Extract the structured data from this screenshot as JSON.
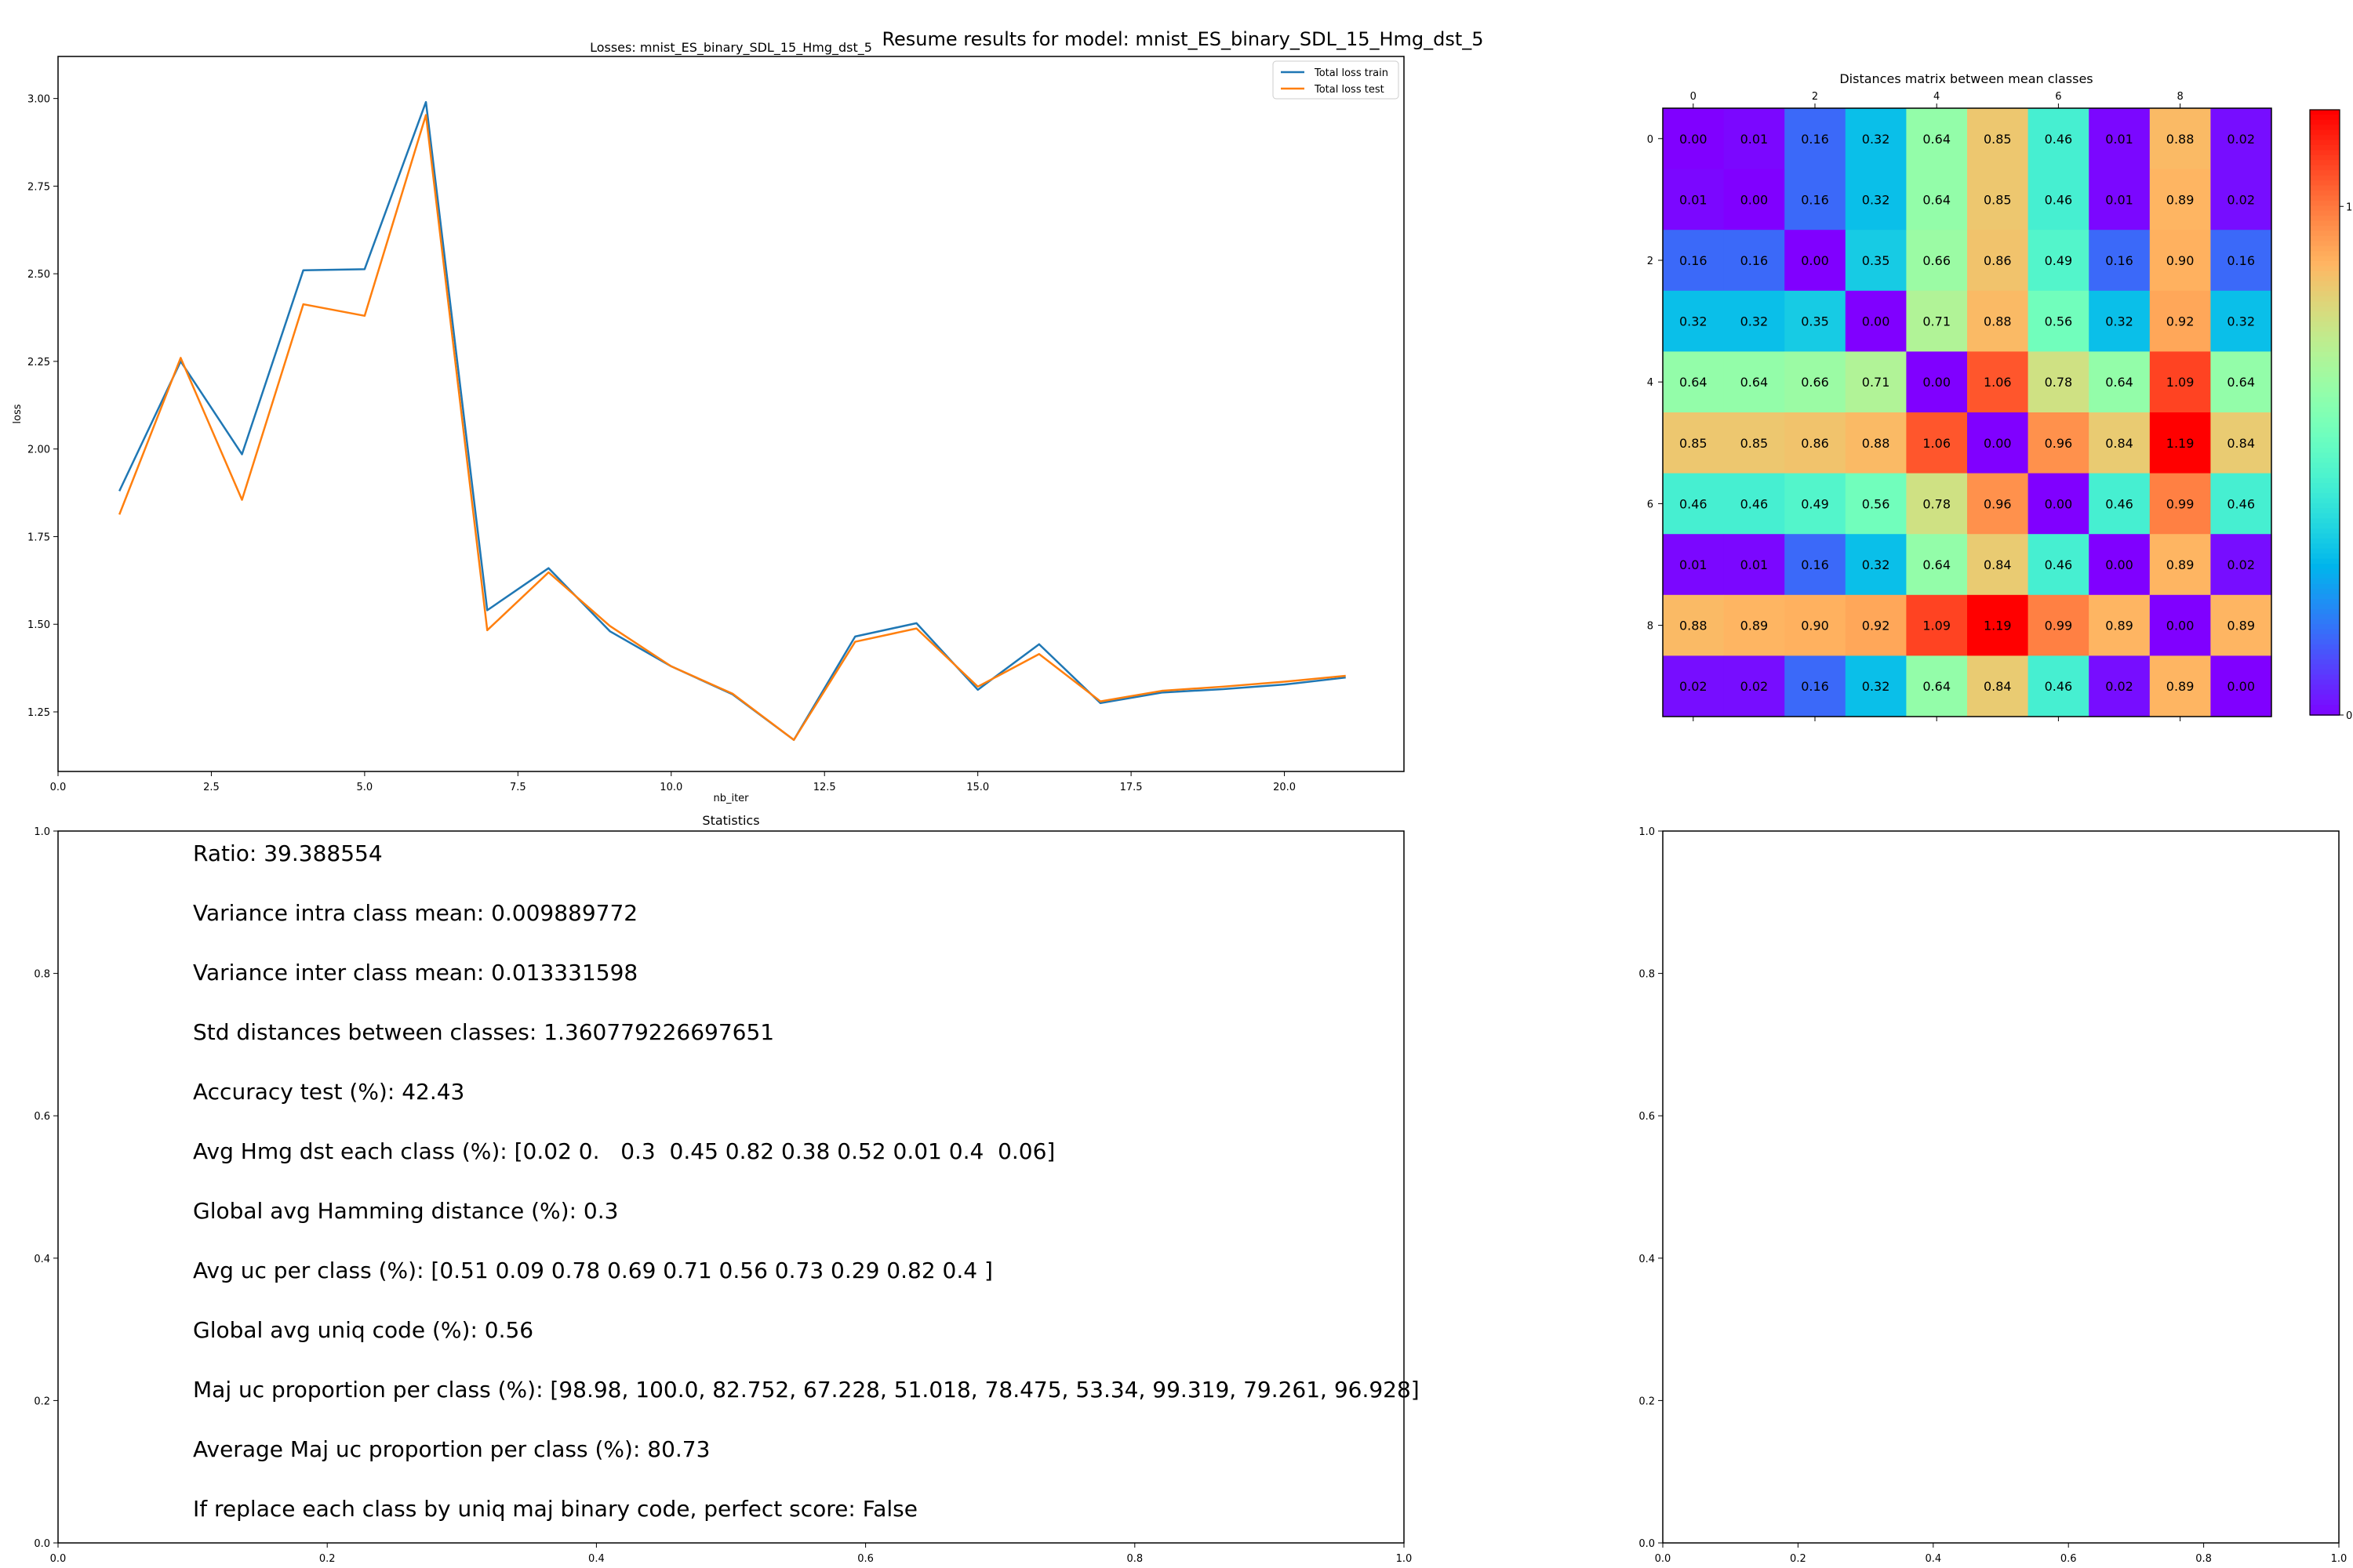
{
  "figure_title": "Resume results for model: mnist_ES_binary_SDL_15_Hmg_dst_5",
  "chart_data": [
    {
      "type": "line",
      "title": "Losses: mnist_ES_binary_SDL_15_Hmg_dst_5",
      "xlabel": "nb_iter",
      "ylabel": "loss",
      "xlim": [
        0.0,
        21.95
      ],
      "ylim": [
        1.08,
        3.12
      ],
      "x_ticks": [
        "0.0",
        "2.5",
        "5.0",
        "7.5",
        "10.0",
        "12.5",
        "15.0",
        "17.5",
        "20.0"
      ],
      "y_ticks": [
        "1.25",
        "1.50",
        "1.75",
        "2.00",
        "2.25",
        "2.50",
        "2.75",
        "3.00"
      ],
      "legend_position": "top-right",
      "x": [
        1,
        2,
        3,
        4,
        5,
        6,
        7,
        8,
        9,
        10,
        11,
        12,
        13,
        14,
        15,
        16,
        17,
        18,
        19,
        20,
        21
      ],
      "series": [
        {
          "name": "Total loss train",
          "color": "#1f77b4",
          "values": [
            1.88,
            2.25,
            1.985,
            2.51,
            2.513,
            2.99,
            1.54,
            1.66,
            1.48,
            1.38,
            1.3,
            1.17,
            1.465,
            1.503,
            1.313,
            1.443,
            1.275,
            1.305,
            1.315,
            1.328,
            1.348
          ]
        },
        {
          "name": "Total loss test",
          "color": "#ff7f0e",
          "values": [
            1.813,
            2.26,
            1.855,
            2.413,
            2.38,
            2.953,
            1.483,
            1.648,
            1.495,
            1.38,
            1.302,
            1.17,
            1.45,
            1.488,
            1.322,
            1.415,
            1.28,
            1.31,
            1.322,
            1.336,
            1.353
          ]
        }
      ]
    },
    {
      "type": "heatmap",
      "title": "Distances matrix between mean classes",
      "colormap": "rainbow",
      "vmin": 0.0,
      "vmax": 1.19,
      "row_ticks": [
        "0",
        "2",
        "4",
        "6",
        "8"
      ],
      "col_ticks": [
        "0",
        "2",
        "4",
        "6",
        "8"
      ],
      "colorbar_ticks": [
        "0",
        "1"
      ],
      "matrix": [
        [
          "0.00",
          "0.01",
          "0.16",
          "0.32",
          "0.64",
          "0.85",
          "0.46",
          "0.01",
          "0.88",
          "0.02"
        ],
        [
          "0.01",
          "0.00",
          "0.16",
          "0.32",
          "0.64",
          "0.85",
          "0.46",
          "0.01",
          "0.89",
          "0.02"
        ],
        [
          "0.16",
          "0.16",
          "0.00",
          "0.35",
          "0.66",
          "0.86",
          "0.49",
          "0.16",
          "0.90",
          "0.16"
        ],
        [
          "0.32",
          "0.32",
          "0.35",
          "0.00",
          "0.71",
          "0.88",
          "0.56",
          "0.32",
          "0.92",
          "0.32"
        ],
        [
          "0.64",
          "0.64",
          "0.66",
          "0.71",
          "0.00",
          "1.06",
          "0.78",
          "0.64",
          "1.09",
          "0.64"
        ],
        [
          "0.85",
          "0.85",
          "0.86",
          "0.88",
          "1.06",
          "0.00",
          "0.96",
          "0.84",
          "1.19",
          "0.84"
        ],
        [
          "0.46",
          "0.46",
          "0.49",
          "0.56",
          "0.78",
          "0.96",
          "0.00",
          "0.46",
          "0.99",
          "0.46"
        ],
        [
          "0.01",
          "0.01",
          "0.16",
          "0.32",
          "0.64",
          "0.84",
          "0.46",
          "0.00",
          "0.89",
          "0.02"
        ],
        [
          "0.88",
          "0.89",
          "0.90",
          "0.92",
          "1.09",
          "1.19",
          "0.99",
          "0.89",
          "0.00",
          "0.89"
        ],
        [
          "0.02",
          "0.02",
          "0.16",
          "0.32",
          "0.64",
          "0.84",
          "0.46",
          "0.02",
          "0.89",
          "0.00"
        ]
      ]
    },
    {
      "type": "text",
      "title": "Statistics",
      "xlim": [
        0,
        1
      ],
      "ylim": [
        0,
        1
      ],
      "x_ticks": [
        "0.0",
        "0.2",
        "0.4",
        "0.6",
        "0.8",
        "1.0"
      ],
      "y_ticks": [
        "0.0",
        "0.2",
        "0.4",
        "0.6",
        "0.8",
        "1.0"
      ],
      "lines": [
        "Ratio: 39.388554",
        "Variance intra class mean: 0.009889772",
        "Variance inter class mean: 0.013331598",
        "Std distances between classes: 1.360779226697651",
        "Accuracy test (%): 42.43",
        "Avg Hmg dst each class (%): [0.02 0.   0.3  0.45 0.82 0.38 0.52 0.01 0.4  0.06]",
        "Global avg Hamming distance (%): 0.3",
        "Avg uc per class (%): [0.51 0.09 0.78 0.69 0.71 0.56 0.73 0.29 0.82 0.4 ]",
        "Global avg uniq code (%): 0.56",
        "Maj uc proportion per class (%): [98.98, 100.0, 82.752, 67.228, 51.018, 78.475, 53.34, 99.319, 79.261, 96.928]",
        "Average Maj uc proportion per class (%): 80.73",
        "If replace each class by uniq maj binary code, perfect score: False"
      ]
    },
    {
      "type": "empty",
      "xlim": [
        0,
        1
      ],
      "ylim": [
        0,
        1
      ],
      "x_ticks": [
        "0.0",
        "0.2",
        "0.4",
        "0.6",
        "0.8",
        "1.0"
      ],
      "y_ticks": [
        "0.0",
        "0.2",
        "0.4",
        "0.6",
        "0.8",
        "1.0"
      ]
    }
  ]
}
